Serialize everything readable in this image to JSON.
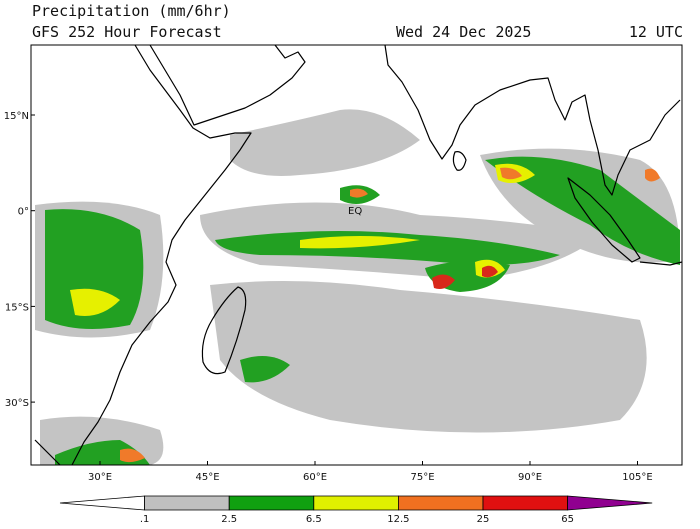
{
  "header": {
    "title": "Precipitation (mm/6hr)",
    "subtitle": "GFS 252 Hour Forecast",
    "date": "Wed 24 Dec 2025",
    "time": "12 UTC"
  },
  "map": {
    "lon_labels": [
      "30°E",
      "45°E",
      "60°E",
      "75°E",
      "90°E",
      "105°E"
    ],
    "lat_labels": [
      "15°N",
      "0°",
      "15°S",
      "30°S"
    ],
    "annotation": "EQ"
  },
  "colorbar": {
    "labels": [
      ".1",
      "2.5",
      "6.5",
      "12.5",
      "25",
      "65"
    ],
    "colors": [
      "#ffffff",
      "#c0c0c0",
      "#10a010",
      "#e0f000",
      "#f07020",
      "#e01010",
      "#900090"
    ]
  }
}
